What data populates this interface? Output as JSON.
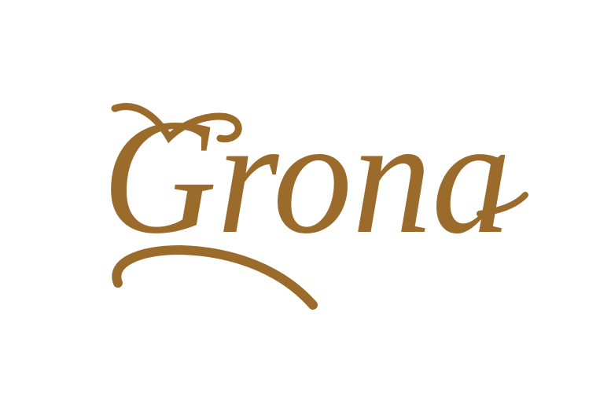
{
  "logo": {
    "text": "Grona"
  }
}
